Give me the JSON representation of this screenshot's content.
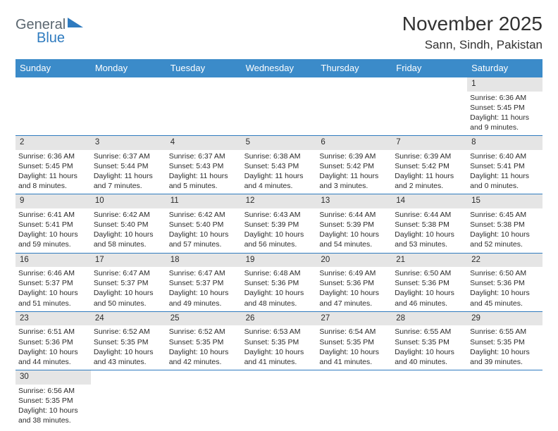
{
  "logo": {
    "text1": "General",
    "text2": "Blue"
  },
  "title": "November 2025",
  "location": "Sann, Sindh, Pakistan",
  "colors": {
    "header_bg": "#3b8bc9",
    "header_text": "#ffffff",
    "daynum_bg": "#e5e5e5",
    "week_border": "#2f7bbf",
    "text": "#2b2b2b"
  },
  "day_labels": [
    "Sunday",
    "Monday",
    "Tuesday",
    "Wednesday",
    "Thursday",
    "Friday",
    "Saturday"
  ],
  "weeks": [
    [
      null,
      null,
      null,
      null,
      null,
      null,
      {
        "n": "1",
        "sr": "Sunrise: 6:36 AM",
        "ss": "Sunset: 5:45 PM",
        "dl1": "Daylight: 11 hours",
        "dl2": "and 9 minutes."
      }
    ],
    [
      {
        "n": "2",
        "sr": "Sunrise: 6:36 AM",
        "ss": "Sunset: 5:45 PM",
        "dl1": "Daylight: 11 hours",
        "dl2": "and 8 minutes."
      },
      {
        "n": "3",
        "sr": "Sunrise: 6:37 AM",
        "ss": "Sunset: 5:44 PM",
        "dl1": "Daylight: 11 hours",
        "dl2": "and 7 minutes."
      },
      {
        "n": "4",
        "sr": "Sunrise: 6:37 AM",
        "ss": "Sunset: 5:43 PM",
        "dl1": "Daylight: 11 hours",
        "dl2": "and 5 minutes."
      },
      {
        "n": "5",
        "sr": "Sunrise: 6:38 AM",
        "ss": "Sunset: 5:43 PM",
        "dl1": "Daylight: 11 hours",
        "dl2": "and 4 minutes."
      },
      {
        "n": "6",
        "sr": "Sunrise: 6:39 AM",
        "ss": "Sunset: 5:42 PM",
        "dl1": "Daylight: 11 hours",
        "dl2": "and 3 minutes."
      },
      {
        "n": "7",
        "sr": "Sunrise: 6:39 AM",
        "ss": "Sunset: 5:42 PM",
        "dl1": "Daylight: 11 hours",
        "dl2": "and 2 minutes."
      },
      {
        "n": "8",
        "sr": "Sunrise: 6:40 AM",
        "ss": "Sunset: 5:41 PM",
        "dl1": "Daylight: 11 hours",
        "dl2": "and 0 minutes."
      }
    ],
    [
      {
        "n": "9",
        "sr": "Sunrise: 6:41 AM",
        "ss": "Sunset: 5:41 PM",
        "dl1": "Daylight: 10 hours",
        "dl2": "and 59 minutes."
      },
      {
        "n": "10",
        "sr": "Sunrise: 6:42 AM",
        "ss": "Sunset: 5:40 PM",
        "dl1": "Daylight: 10 hours",
        "dl2": "and 58 minutes."
      },
      {
        "n": "11",
        "sr": "Sunrise: 6:42 AM",
        "ss": "Sunset: 5:40 PM",
        "dl1": "Daylight: 10 hours",
        "dl2": "and 57 minutes."
      },
      {
        "n": "12",
        "sr": "Sunrise: 6:43 AM",
        "ss": "Sunset: 5:39 PM",
        "dl1": "Daylight: 10 hours",
        "dl2": "and 56 minutes."
      },
      {
        "n": "13",
        "sr": "Sunrise: 6:44 AM",
        "ss": "Sunset: 5:39 PM",
        "dl1": "Daylight: 10 hours",
        "dl2": "and 54 minutes."
      },
      {
        "n": "14",
        "sr": "Sunrise: 6:44 AM",
        "ss": "Sunset: 5:38 PM",
        "dl1": "Daylight: 10 hours",
        "dl2": "and 53 minutes."
      },
      {
        "n": "15",
        "sr": "Sunrise: 6:45 AM",
        "ss": "Sunset: 5:38 PM",
        "dl1": "Daylight: 10 hours",
        "dl2": "and 52 minutes."
      }
    ],
    [
      {
        "n": "16",
        "sr": "Sunrise: 6:46 AM",
        "ss": "Sunset: 5:37 PM",
        "dl1": "Daylight: 10 hours",
        "dl2": "and 51 minutes."
      },
      {
        "n": "17",
        "sr": "Sunrise: 6:47 AM",
        "ss": "Sunset: 5:37 PM",
        "dl1": "Daylight: 10 hours",
        "dl2": "and 50 minutes."
      },
      {
        "n": "18",
        "sr": "Sunrise: 6:47 AM",
        "ss": "Sunset: 5:37 PM",
        "dl1": "Daylight: 10 hours",
        "dl2": "and 49 minutes."
      },
      {
        "n": "19",
        "sr": "Sunrise: 6:48 AM",
        "ss": "Sunset: 5:36 PM",
        "dl1": "Daylight: 10 hours",
        "dl2": "and 48 minutes."
      },
      {
        "n": "20",
        "sr": "Sunrise: 6:49 AM",
        "ss": "Sunset: 5:36 PM",
        "dl1": "Daylight: 10 hours",
        "dl2": "and 47 minutes."
      },
      {
        "n": "21",
        "sr": "Sunrise: 6:50 AM",
        "ss": "Sunset: 5:36 PM",
        "dl1": "Daylight: 10 hours",
        "dl2": "and 46 minutes."
      },
      {
        "n": "22",
        "sr": "Sunrise: 6:50 AM",
        "ss": "Sunset: 5:36 PM",
        "dl1": "Daylight: 10 hours",
        "dl2": "and 45 minutes."
      }
    ],
    [
      {
        "n": "23",
        "sr": "Sunrise: 6:51 AM",
        "ss": "Sunset: 5:36 PM",
        "dl1": "Daylight: 10 hours",
        "dl2": "and 44 minutes."
      },
      {
        "n": "24",
        "sr": "Sunrise: 6:52 AM",
        "ss": "Sunset: 5:35 PM",
        "dl1": "Daylight: 10 hours",
        "dl2": "and 43 minutes."
      },
      {
        "n": "25",
        "sr": "Sunrise: 6:52 AM",
        "ss": "Sunset: 5:35 PM",
        "dl1": "Daylight: 10 hours",
        "dl2": "and 42 minutes."
      },
      {
        "n": "26",
        "sr": "Sunrise: 6:53 AM",
        "ss": "Sunset: 5:35 PM",
        "dl1": "Daylight: 10 hours",
        "dl2": "and 41 minutes."
      },
      {
        "n": "27",
        "sr": "Sunrise: 6:54 AM",
        "ss": "Sunset: 5:35 PM",
        "dl1": "Daylight: 10 hours",
        "dl2": "and 41 minutes."
      },
      {
        "n": "28",
        "sr": "Sunrise: 6:55 AM",
        "ss": "Sunset: 5:35 PM",
        "dl1": "Daylight: 10 hours",
        "dl2": "and 40 minutes."
      },
      {
        "n": "29",
        "sr": "Sunrise: 6:55 AM",
        "ss": "Sunset: 5:35 PM",
        "dl1": "Daylight: 10 hours",
        "dl2": "and 39 minutes."
      }
    ],
    [
      {
        "n": "30",
        "sr": "Sunrise: 6:56 AM",
        "ss": "Sunset: 5:35 PM",
        "dl1": "Daylight: 10 hours",
        "dl2": "and 38 minutes."
      },
      null,
      null,
      null,
      null,
      null,
      null
    ]
  ]
}
